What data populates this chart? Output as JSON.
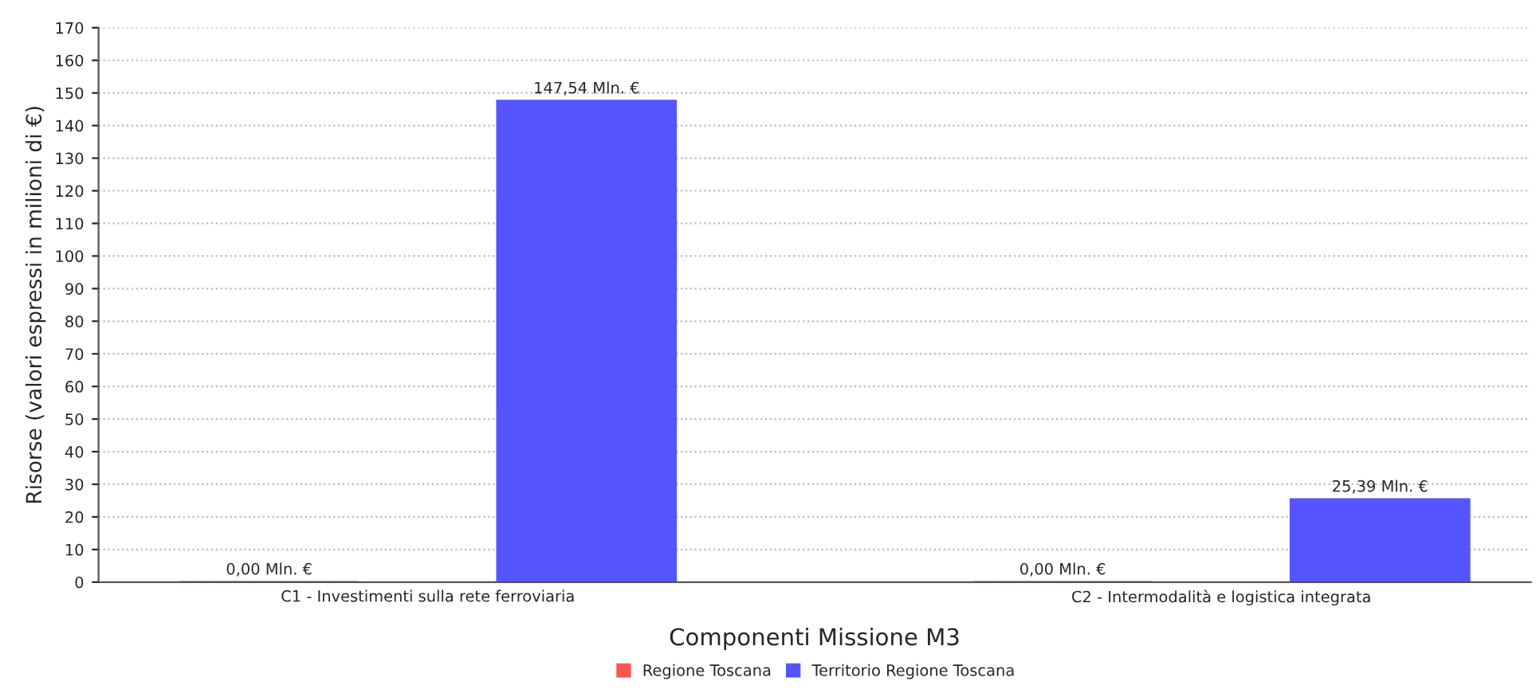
{
  "chart_data": {
    "type": "bar",
    "xlabel": "Componenti Missione M3",
    "ylabel": "Risorse (valori espressi in milioni di €)",
    "categories": [
      "C1 - Investimenti sulla rete ferroviaria",
      "C2 - Intermodalità e logistica integrata"
    ],
    "series": [
      {
        "name": "Regione Toscana",
        "color": "#ff5555",
        "values": [
          0.0,
          0.0
        ],
        "value_labels": [
          "0,00 Mln. €",
          "0,00 Mln. €"
        ]
      },
      {
        "name": "Territorio Regione Toscana",
        "color": "#5555ff",
        "values": [
          147.54,
          25.39
        ],
        "value_labels": [
          "147,54 Mln. €",
          "25,39 Mln. €"
        ]
      }
    ],
    "ylim": [
      0,
      170
    ],
    "yticks": [
      0,
      10,
      20,
      30,
      40,
      50,
      60,
      70,
      80,
      90,
      100,
      110,
      120,
      130,
      140,
      150,
      160,
      170
    ],
    "grid": "y",
    "legend": "bottom"
  }
}
